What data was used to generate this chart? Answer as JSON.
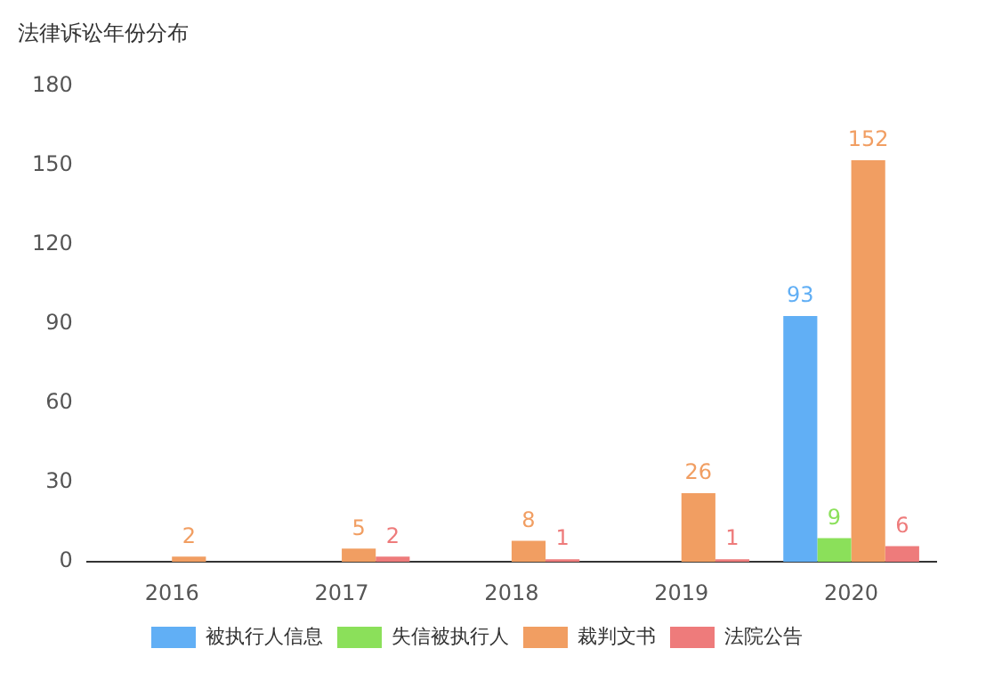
{
  "chart_data": {
    "type": "bar",
    "title": "法律诉讼年份分布",
    "categories": [
      "2016",
      "2017",
      "2018",
      "2019",
      "2020"
    ],
    "series": [
      {
        "name": "被执行人信息",
        "color": "#61aff5",
        "values": [
          0,
          0,
          0,
          0,
          93
        ],
        "value_labels": [
          null,
          null,
          null,
          null,
          "93"
        ]
      },
      {
        "name": "失信被执行人",
        "color": "#8be05a",
        "values": [
          0,
          0,
          0,
          0,
          9
        ],
        "value_labels": [
          null,
          null,
          null,
          null,
          "9"
        ]
      },
      {
        "name": "裁判文书",
        "color": "#f19e62",
        "values": [
          2,
          5,
          8,
          26,
          152
        ],
        "value_labels": [
          "2",
          "5",
          "8",
          "26",
          "152"
        ]
      },
      {
        "name": "法院公告",
        "color": "#ee7b7b",
        "values": [
          0,
          2,
          1,
          1,
          6
        ],
        "value_labels": [
          null,
          "2",
          "1",
          "1",
          "6"
        ]
      }
    ],
    "ylim": [
      0,
      180
    ],
    "yticks": [
      0,
      30,
      60,
      90,
      120,
      150,
      180
    ],
    "grid": false,
    "legend": "bottom"
  }
}
